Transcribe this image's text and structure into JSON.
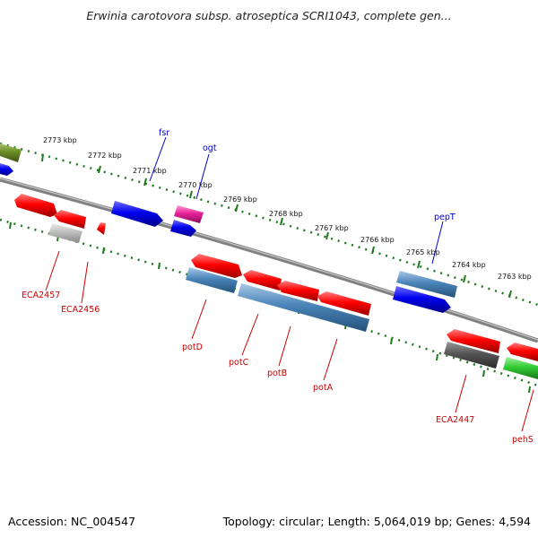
{
  "header": {
    "title": "Erwinia carotovora subsp. atroseptica SCRI1043, complete gen..."
  },
  "footer": {
    "accession": "Accession: NC_004547",
    "summary": "Topology: circular; Length: 5,064,019 bp; Genes: 4,594"
  },
  "scale_labels": [
    "2773 kbp",
    "2772 kbp",
    "2771 kbp",
    "2770 kbp",
    "2769 kbp",
    "2768 kbp",
    "2767 kbp",
    "2766 kbp",
    "2765 kbp",
    "2764 kbp",
    "2763 kbp"
  ],
  "gene_labels": [
    {
      "text": "fsr",
      "color": "#0000cc"
    },
    {
      "text": "ogt",
      "color": "#0000cc"
    },
    {
      "text": "pepT",
      "color": "#0000cc"
    },
    {
      "text": "ECA2457",
      "color": "#cc0000"
    },
    {
      "text": "ECA2456",
      "color": "#cc0000"
    },
    {
      "text": "potD",
      "color": "#cc0000"
    },
    {
      "text": "potC",
      "color": "#cc0000"
    },
    {
      "text": "potB",
      "color": "#cc0000"
    },
    {
      "text": "potA",
      "color": "#cc0000"
    },
    {
      "text": "ECA2447",
      "color": "#cc0000"
    },
    {
      "text": "pehS",
      "color": "#cc0000"
    }
  ],
  "colors": {
    "forward_cds": "#0000ee",
    "reverse_cds": "#ee0000",
    "rna": "#e8229a",
    "cog_blue": "#4a84b8",
    "cog_grey": "#555555",
    "cog_light": "#b8b8b8",
    "cog_green": "#33cc33",
    "cog_olive": "#6b8e23",
    "ticks": "#1e7a1e",
    "backbone": "#808080"
  }
}
